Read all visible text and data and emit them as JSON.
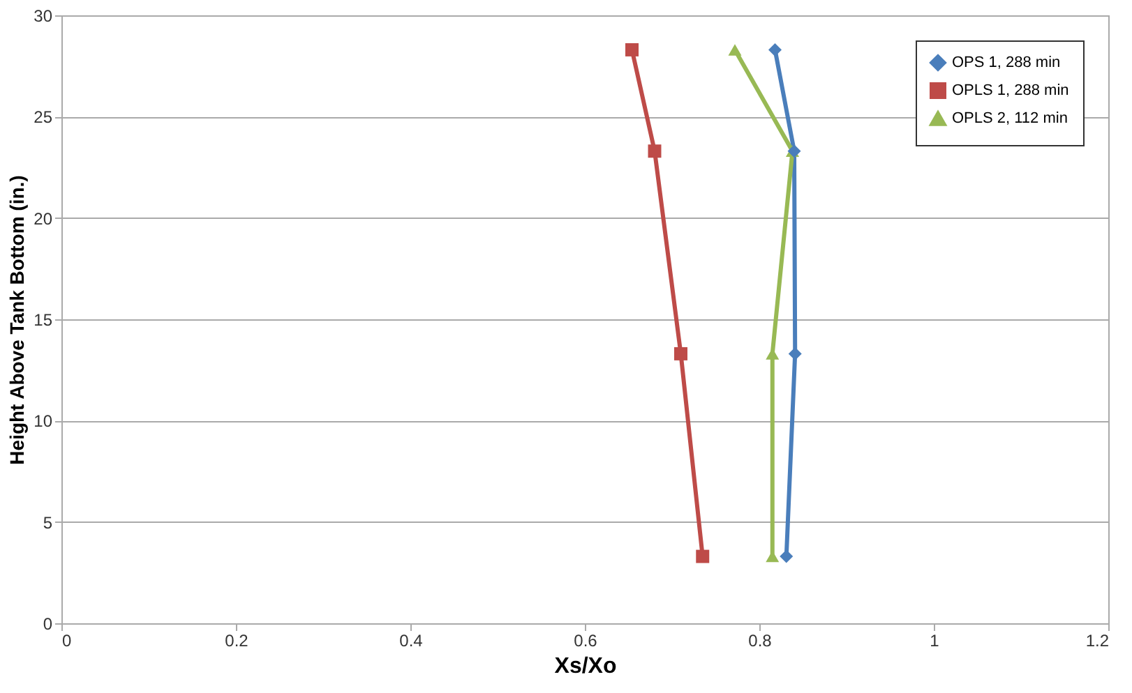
{
  "chart_data": {
    "type": "line",
    "xlabel": "Xs/Xo",
    "ylabel": "Height Above Tank Bottom  (in.)",
    "xlim": [
      0,
      1.2
    ],
    "xticks": [
      0,
      0.2,
      0.4,
      0.6,
      0.8,
      1,
      1.2
    ],
    "ylim": [
      0,
      30
    ],
    "yticks": [
      0,
      5,
      10,
      15,
      20,
      25,
      30
    ],
    "grid": "y",
    "legend": "top right",
    "line_style": "solid",
    "series": [
      {
        "name": "OPS 1, 288 min",
        "color": "#4a7ebb",
        "marker": "diamond",
        "x": [
          0.818,
          0.84,
          0.841,
          0.831
        ],
        "values": [
          28.3,
          23.3,
          13.3,
          3.3
        ]
      },
      {
        "name": "OPLS 1, 288 min",
        "color": "#be4b48",
        "marker": "square",
        "x": [
          0.654,
          0.68,
          0.71,
          0.735
        ],
        "values": [
          28.3,
          23.3,
          13.3,
          3.3
        ]
      },
      {
        "name": "OPLS 2, 112 min",
        "color": "#98b954",
        "marker": "triangle",
        "x": [
          0.772,
          0.838,
          0.815,
          0.815
        ],
        "values": [
          28.3,
          23.3,
          13.3,
          3.3
        ]
      }
    ]
  }
}
